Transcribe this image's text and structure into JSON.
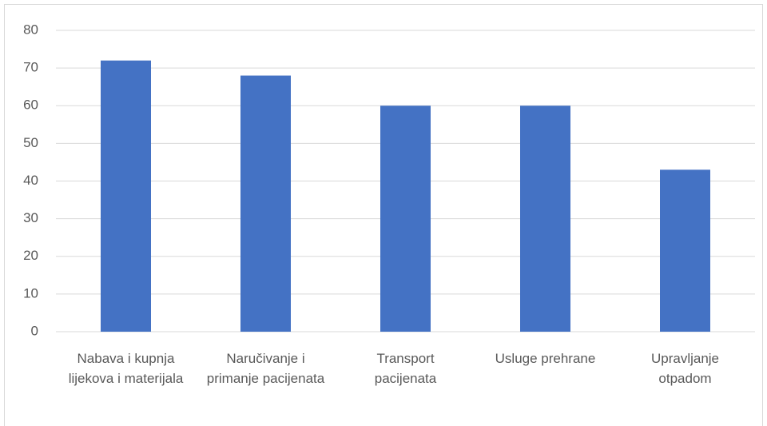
{
  "chart_data": {
    "type": "bar",
    "categories": [
      "Nabava i kupnja lijekova i materijala",
      "Naručivanje i primanje pacijenata",
      "Transport pacijenata",
      "Usluge prehrane",
      "Upravljanje otpadom"
    ],
    "values": [
      72,
      68,
      60,
      60,
      43
    ],
    "color": "#4472c4",
    "ylim": [
      0,
      80
    ],
    "yticks": [
      0,
      10,
      20,
      30,
      40,
      50,
      60,
      70,
      80
    ],
    "grid": true
  }
}
